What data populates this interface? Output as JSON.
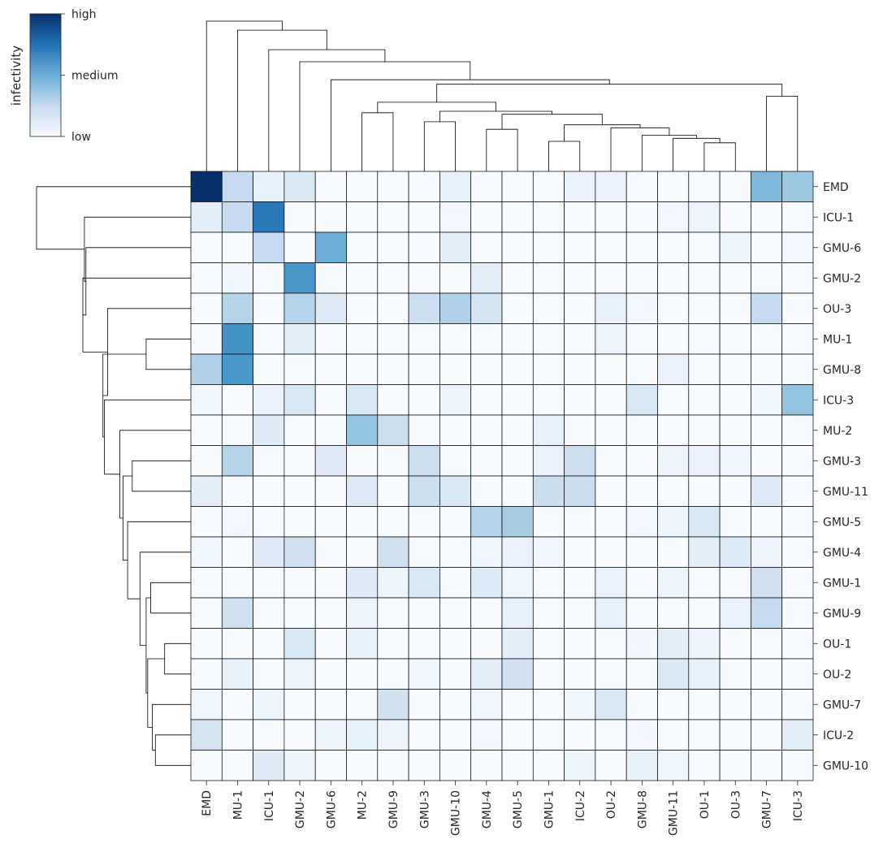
{
  "chart_data": {
    "type": "heatmap",
    "colormap": "Blues",
    "rows": [
      "EMD",
      "ICU-1",
      "GMU-6",
      "GMU-2",
      "OU-3",
      "MU-1",
      "GMU-8",
      "ICU-3",
      "MU-2",
      "GMU-3",
      "GMU-11",
      "GMU-5",
      "GMU-4",
      "GMU-1",
      "GMU-9",
      "OU-1",
      "OU-2",
      "GMU-7",
      "ICU-2",
      "GMU-10"
    ],
    "columns": [
      "EMD",
      "MU-1",
      "ICU-1",
      "GMU-2",
      "GMU-6",
      "MU-2",
      "GMU-9",
      "GMU-3",
      "GMU-10",
      "GMU-4",
      "GMU-5",
      "GMU-1",
      "ICU-2",
      "OU-2",
      "GMU-8",
      "GMU-11",
      "OU-1",
      "OU-3",
      "GMU-7",
      "ICU-3"
    ],
    "values": [
      [
        1.0,
        0.25,
        0.08,
        0.15,
        0,
        0,
        0,
        0,
        0.08,
        0,
        0,
        0,
        0.07,
        0.07,
        0,
        0,
        0,
        0,
        0.45,
        0.38
      ],
      [
        0.1,
        0.25,
        0.72,
        0,
        0,
        0,
        0,
        0,
        0.03,
        0,
        0,
        0,
        0,
        0,
        0,
        0.03,
        0.05,
        0,
        0,
        0
      ],
      [
        0,
        0,
        0.25,
        0,
        0.5,
        0,
        0,
        0,
        0.1,
        0,
        0,
        0,
        0,
        0,
        0,
        0,
        0,
        0.05,
        0,
        0.03
      ],
      [
        0,
        0.04,
        0,
        0.6,
        0,
        0,
        0,
        0,
        0,
        0.1,
        0,
        0,
        0,
        0,
        0,
        0,
        0,
        0,
        0,
        0
      ],
      [
        0,
        0.3,
        0,
        0.3,
        0.12,
        0,
        0,
        0.22,
        0.32,
        0.17,
        0,
        0,
        0,
        0.08,
        0.03,
        0,
        0,
        0,
        0.25,
        0
      ],
      [
        0,
        0.62,
        0,
        0.1,
        0,
        0,
        0,
        0,
        0,
        0,
        0,
        0,
        0,
        0.06,
        0,
        0,
        0,
        0,
        0,
        0
      ],
      [
        0.32,
        0.6,
        0,
        0,
        0,
        0,
        0,
        0,
        0,
        0,
        0,
        0,
        0,
        0,
        0,
        0.07,
        0,
        0,
        0,
        0
      ],
      [
        0.04,
        0,
        0.07,
        0.15,
        0,
        0.15,
        0,
        0,
        0.05,
        0,
        0,
        0,
        0,
        0,
        0.15,
        0,
        0,
        0,
        0.04,
        0.4
      ],
      [
        0,
        0,
        0.12,
        0,
        0,
        0.4,
        0.22,
        0,
        0,
        0,
        0,
        0.08,
        0,
        0,
        0,
        0,
        0,
        0,
        0,
        0
      ],
      [
        0,
        0.3,
        0,
        0,
        0.12,
        0,
        0,
        0.22,
        0,
        0,
        0,
        0.07,
        0.22,
        0,
        0,
        0.06,
        0.07,
        0.04,
        0,
        0
      ],
      [
        0.1,
        0,
        0,
        0,
        0,
        0.12,
        0,
        0.22,
        0.14,
        0,
        0,
        0.23,
        0.23,
        0,
        0,
        0,
        0,
        0,
        0.12,
        0
      ],
      [
        0,
        0.03,
        0,
        0,
        0,
        0,
        0,
        0,
        0,
        0.3,
        0.35,
        0,
        0,
        0,
        0.03,
        0.05,
        0.15,
        0,
        0,
        0
      ],
      [
        0.04,
        0,
        0.12,
        0.2,
        0,
        0,
        0.2,
        0,
        0,
        0.04,
        0.07,
        0.04,
        0,
        0,
        0,
        0,
        0.1,
        0.13,
        0.05,
        0
      ],
      [
        0,
        0,
        0,
        0,
        0,
        0.12,
        0.05,
        0.15,
        0,
        0.13,
        0.04,
        0,
        0,
        0.07,
        0,
        0.05,
        0,
        0,
        0.2,
        0
      ],
      [
        0,
        0.2,
        0,
        0,
        0,
        0.05,
        0,
        0,
        0,
        0,
        0.08,
        0,
        0,
        0.08,
        0,
        0,
        0,
        0.07,
        0.25,
        0
      ],
      [
        0,
        0,
        0,
        0.15,
        0,
        0.08,
        0,
        0,
        0,
        0,
        0.1,
        0,
        0,
        0,
        0.03,
        0.1,
        0.05,
        0,
        0,
        0
      ],
      [
        0,
        0.08,
        0,
        0.06,
        0,
        0,
        0,
        0.04,
        0,
        0.1,
        0.2,
        0,
        0,
        0,
        0,
        0.15,
        0.08,
        0,
        0,
        0
      ],
      [
        0.04,
        0,
        0.05,
        0,
        0,
        0,
        0.2,
        0,
        0,
        0.04,
        0,
        0,
        0.04,
        0.15,
        0,
        0,
        0,
        0,
        0,
        0
      ],
      [
        0.18,
        0,
        0,
        0,
        0.06,
        0.08,
        0.05,
        0,
        0,
        0.03,
        0,
        0,
        0,
        0,
        0.03,
        0,
        0,
        0,
        0,
        0.1
      ],
      [
        0,
        0,
        0.12,
        0.05,
        0,
        0,
        0,
        0,
        0,
        0,
        0,
        0,
        0.06,
        0,
        0.08,
        0.04,
        0,
        0,
        0,
        0
      ]
    ],
    "colorbar": {
      "label": "infectivity",
      "ticks": [
        "high",
        "medium",
        "low"
      ],
      "tick_values": [
        1,
        0.5,
        0
      ]
    },
    "dendrogram_top": [
      [
        1,
        4,
        0.56
      ],
      [
        2,
        6,
        0.4
      ],
      [
        3,
        8,
        0.73
      ],
      [
        9,
        5,
        0.8
      ],
      [
        10,
        11,
        0.9
      ],
      [
        12,
        13,
        0.92
      ],
      [
        14,
        15,
        0.94
      ],
      [
        16,
        17,
        0.96
      ],
      [
        18,
        19,
        0.98
      ],
      [
        20,
        21,
        1.0
      ]
    ],
    "dendrogram_left": [
      [
        1,
        4,
        0.5
      ],
      [
        2,
        6,
        0.48
      ],
      [
        3,
        8,
        0.3
      ],
      [
        9,
        5,
        0.2
      ],
      [
        10,
        11,
        0.13
      ],
      [
        12,
        13,
        0.12
      ],
      [
        14,
        15,
        0.12
      ],
      [
        16,
        17,
        0.1
      ],
      [
        18,
        19,
        0.08
      ],
      [
        20,
        21,
        0.06
      ]
    ]
  },
  "colors": {
    "low": "#f7fbff",
    "mid": "#6baed6",
    "high": "#08306b",
    "grid": "#000000",
    "dendro": "#000000"
  }
}
